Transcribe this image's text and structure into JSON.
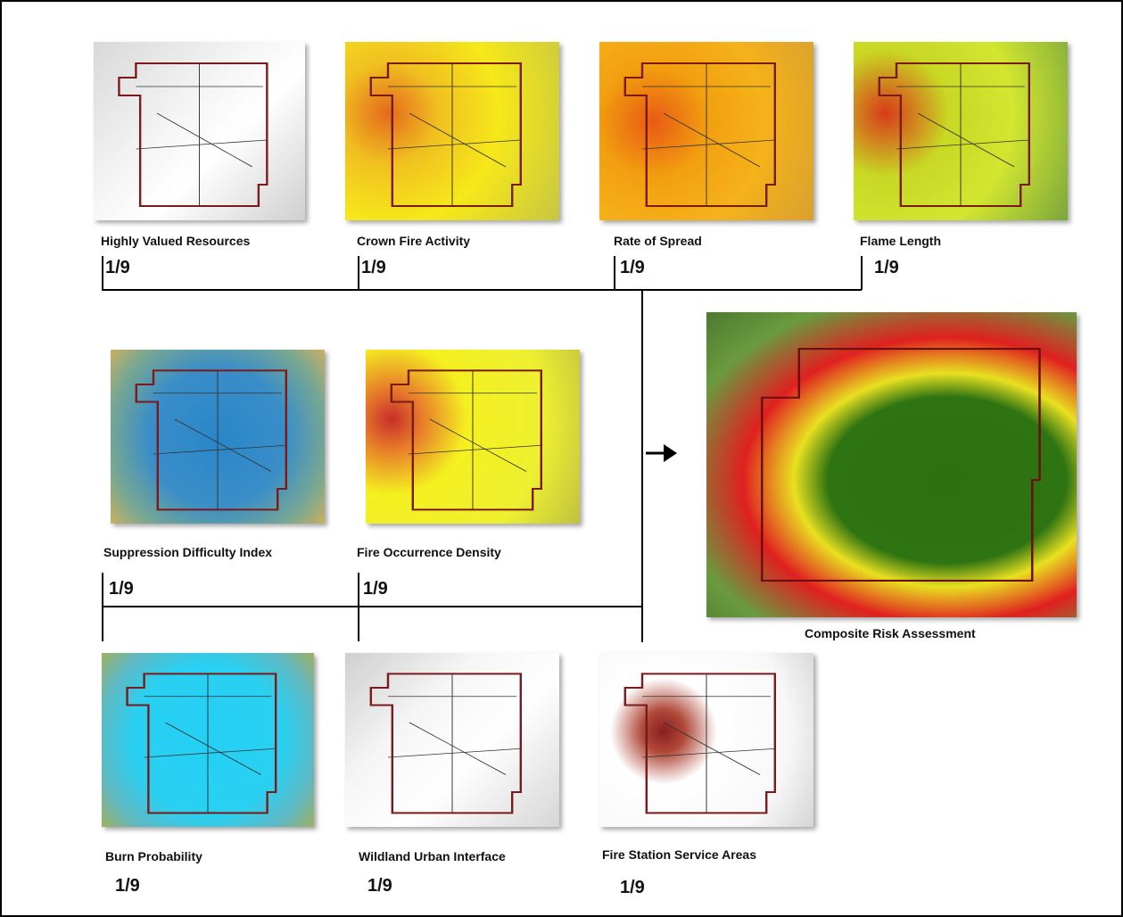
{
  "inputs": [
    {
      "label": "Highly Valued Resources",
      "weight": "1/9"
    },
    {
      "label": "Crown Fire Activity",
      "weight": "1/9"
    },
    {
      "label": "Rate of Spread",
      "weight": "1/9"
    },
    {
      "label": "Flame Length",
      "weight": "1/9"
    },
    {
      "label": "Suppression Difficulty Index",
      "weight": "1/9"
    },
    {
      "label": "Fire Occurrence Density",
      "weight": "1/9"
    },
    {
      "label": "Burn Probability",
      "weight": "1/9"
    },
    {
      "label": "Wildland Urban Interface",
      "weight": "1/9"
    },
    {
      "label": "Fire Station Service Areas",
      "weight": "1/9"
    }
  ],
  "output": {
    "label": "Composite Risk Assessment"
  }
}
